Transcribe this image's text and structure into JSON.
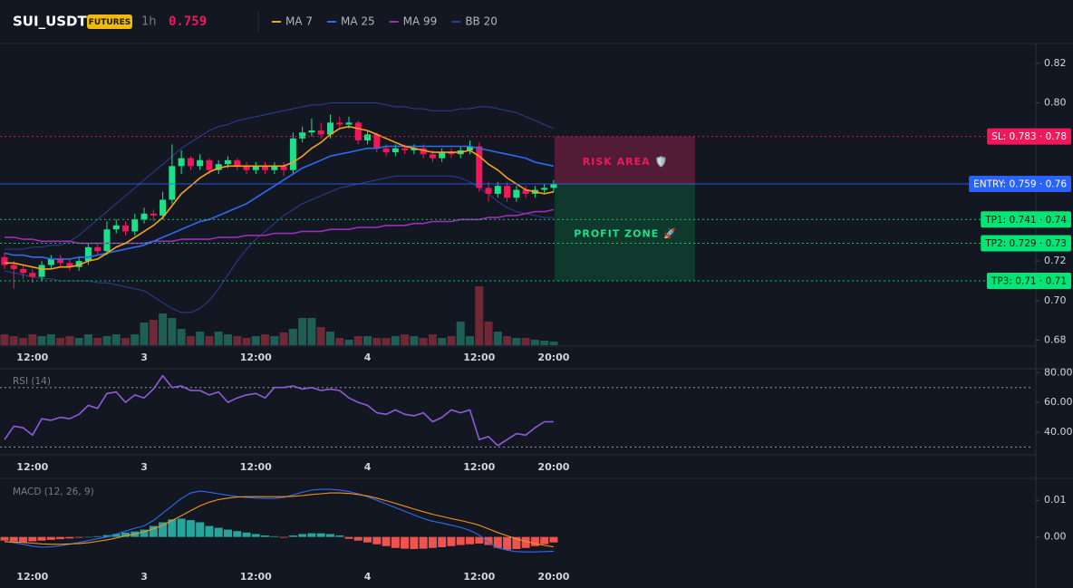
{
  "header": {
    "symbol": "SUI_USDT",
    "badge": "FUTURES",
    "interval": "1h",
    "price": 0.759
  },
  "chart_data": [
    {
      "type": "candlestick",
      "categories": [
        null,
        null,
        null,
        "12:00",
        null,
        null,
        null,
        null,
        null,
        null,
        null,
        null,
        null,
        null,
        null,
        "3",
        null,
        null,
        null,
        null,
        null,
        null,
        null,
        null,
        null,
        null,
        null,
        "12:00",
        null,
        null,
        null,
        null,
        null,
        null,
        null,
        null,
        null,
        null,
        null,
        "4",
        null,
        null,
        null,
        null,
        null,
        null,
        null,
        null,
        null,
        null,
        null,
        "12:00",
        null,
        null,
        null,
        null,
        null,
        null,
        null,
        "20:00"
      ],
      "open": [
        0.722,
        0.718,
        0.716,
        0.714,
        0.712,
        0.718,
        0.721,
        0.719,
        0.717,
        0.72,
        0.727,
        0.725,
        0.736,
        0.738,
        0.735,
        0.741,
        0.744,
        0.743,
        0.751,
        0.768,
        0.772,
        0.768,
        0.771,
        0.766,
        0.769,
        0.771,
        0.768,
        0.766,
        0.768,
        0.766,
        0.768,
        0.766,
        0.782,
        0.785,
        0.786,
        0.784,
        0.79,
        0.789,
        0.79,
        0.781,
        0.784,
        0.777,
        0.775,
        0.777,
        0.776,
        0.777,
        0.774,
        0.772,
        0.775,
        0.774,
        0.776,
        0.778,
        0.757,
        0.754,
        0.758,
        0.752,
        0.756,
        0.754,
        0.756,
        0.757
      ],
      "high": [
        0.724,
        0.72,
        0.718,
        0.716,
        0.72,
        0.723,
        0.723,
        0.721,
        0.722,
        0.729,
        0.729,
        0.74,
        0.741,
        0.74,
        0.744,
        0.747,
        0.746,
        0.755,
        0.779,
        0.776,
        0.773,
        0.774,
        0.772,
        0.771,
        0.773,
        0.772,
        0.77,
        0.77,
        0.77,
        0.77,
        0.77,
        0.785,
        0.788,
        0.792,
        0.79,
        0.794,
        0.793,
        0.793,
        0.791,
        0.786,
        0.785,
        0.779,
        0.779,
        0.779,
        0.779,
        0.779,
        0.776,
        0.777,
        0.777,
        0.778,
        0.781,
        0.78,
        0.76,
        0.76,
        0.76,
        0.758,
        0.758,
        0.758,
        0.759,
        0.761
      ],
      "low": [
        0.716,
        0.706,
        0.711,
        0.709,
        0.71,
        0.716,
        0.717,
        0.715,
        0.715,
        0.718,
        0.723,
        0.723,
        0.734,
        0.733,
        0.733,
        0.739,
        0.74,
        0.741,
        0.749,
        0.764,
        0.766,
        0.766,
        0.764,
        0.764,
        0.767,
        0.766,
        0.764,
        0.764,
        0.764,
        0.764,
        0.763,
        0.764,
        0.78,
        0.783,
        0.782,
        0.782,
        0.787,
        0.787,
        0.779,
        0.779,
        0.775,
        0.773,
        0.773,
        0.774,
        0.774,
        0.772,
        0.77,
        0.77,
        0.772,
        0.772,
        0.774,
        0.755,
        0.75,
        0.752,
        0.75,
        0.75,
        0.752,
        0.752,
        0.754,
        0.755
      ],
      "close": [
        0.718,
        0.716,
        0.714,
        0.712,
        0.718,
        0.721,
        0.719,
        0.717,
        0.72,
        0.727,
        0.725,
        0.736,
        0.738,
        0.735,
        0.741,
        0.744,
        0.743,
        0.751,
        0.768,
        0.772,
        0.768,
        0.771,
        0.766,
        0.769,
        0.771,
        0.768,
        0.766,
        0.768,
        0.766,
        0.768,
        0.766,
        0.782,
        0.785,
        0.786,
        0.784,
        0.79,
        0.789,
        0.79,
        0.781,
        0.784,
        0.777,
        0.775,
        0.777,
        0.776,
        0.777,
        0.774,
        0.772,
        0.775,
        0.774,
        0.776,
        0.778,
        0.757,
        0.754,
        0.758,
        0.752,
        0.756,
        0.754,
        0.756,
        0.757,
        0.759
      ],
      "volume": [
        12,
        10,
        8,
        12,
        10,
        12,
        8,
        10,
        8,
        12,
        8,
        10,
        12,
        8,
        12,
        25,
        28,
        35,
        30,
        18,
        10,
        15,
        10,
        15,
        12,
        10,
        8,
        10,
        12,
        10,
        14,
        18,
        30,
        30,
        20,
        15,
        8,
        6,
        10,
        10,
        8,
        8,
        10,
        12,
        10,
        8,
        12,
        8,
        10,
        26,
        10,
        65,
        26,
        15,
        10,
        8,
        8,
        6,
        5,
        4
      ],
      "up_color": "#1fe08a",
      "down_color": "#f0185a",
      "volume_up_color": "#1d5e55",
      "volume_down_color": "#6e2836",
      "overlays": [
        {
          "name": "MA 7",
          "color": "#f7a21b",
          "values": [
            0.719,
            0.719,
            0.718,
            0.717,
            0.716,
            0.716,
            0.717,
            0.717,
            0.718,
            0.72,
            0.721,
            0.724,
            0.727,
            0.729,
            0.732,
            0.735,
            0.738,
            0.742,
            0.748,
            0.754,
            0.758,
            0.762,
            0.765,
            0.767,
            0.768,
            0.768,
            0.768,
            0.768,
            0.768,
            0.768,
            0.768,
            0.77,
            0.773,
            0.777,
            0.78,
            0.784,
            0.787,
            0.788,
            0.787,
            0.786,
            0.784,
            0.782,
            0.78,
            0.778,
            0.777,
            0.776,
            0.775,
            0.775,
            0.775,
            0.775,
            0.776,
            0.773,
            0.769,
            0.766,
            0.762,
            0.759,
            0.756,
            0.755,
            0.754,
            0.755
          ]
        },
        {
          "name": "MA 25",
          "color": "#2f6bf0",
          "values": [
            0.724,
            0.723,
            0.723,
            0.722,
            0.722,
            0.721,
            0.721,
            0.721,
            0.722,
            0.722,
            0.723,
            0.724,
            0.725,
            0.726,
            0.727,
            0.728,
            0.73,
            0.732,
            0.734,
            0.736,
            0.738,
            0.74,
            0.741,
            0.743,
            0.745,
            0.747,
            0.749,
            0.752,
            0.755,
            0.758,
            0.761,
            0.764,
            0.767,
            0.769,
            0.771,
            0.773,
            0.774,
            0.775,
            0.776,
            0.777,
            0.777,
            0.778,
            0.778,
            0.778,
            0.778,
            0.778,
            0.778,
            0.778,
            0.778,
            0.778,
            0.778,
            0.777,
            0.776,
            0.775,
            0.774,
            0.773,
            0.772,
            0.77,
            0.769,
            0.768
          ]
        },
        {
          "name": "MA 99",
          "color": "#9c2fb8",
          "values": [
            0.732,
            0.732,
            0.731,
            0.731,
            0.73,
            0.73,
            0.73,
            0.73,
            0.729,
            0.729,
            0.729,
            0.729,
            0.729,
            0.729,
            0.729,
            0.729,
            0.73,
            0.73,
            0.73,
            0.731,
            0.731,
            0.731,
            0.731,
            0.732,
            0.732,
            0.732,
            0.733,
            0.733,
            0.733,
            0.734,
            0.734,
            0.734,
            0.735,
            0.735,
            0.735,
            0.736,
            0.736,
            0.736,
            0.737,
            0.737,
            0.737,
            0.738,
            0.738,
            0.738,
            0.739,
            0.739,
            0.74,
            0.74,
            0.74,
            0.741,
            0.741,
            0.741,
            0.742,
            0.742,
            0.743,
            0.743,
            0.744,
            0.745,
            0.745,
            0.746
          ]
        },
        {
          "name": "BB 20",
          "color": "#2a3f8f",
          "upper": [
            0.726,
            0.726,
            0.726,
            0.727,
            0.727,
            0.728,
            0.728,
            0.73,
            0.733,
            0.737,
            0.741,
            0.745,
            0.749,
            0.753,
            0.757,
            0.761,
            0.765,
            0.769,
            0.773,
            0.777,
            0.78,
            0.783,
            0.786,
            0.788,
            0.789,
            0.791,
            0.792,
            0.793,
            0.794,
            0.795,
            0.796,
            0.797,
            0.798,
            0.799,
            0.799,
            0.8,
            0.8,
            0.8,
            0.8,
            0.8,
            0.8,
            0.799,
            0.798,
            0.798,
            0.797,
            0.797,
            0.796,
            0.796,
            0.796,
            0.797,
            0.797,
            0.798,
            0.798,
            0.797,
            0.796,
            0.795,
            0.793,
            0.791,
            0.789,
            0.787
          ],
          "lower": [
            0.715,
            0.714,
            0.713,
            0.712,
            0.711,
            0.711,
            0.71,
            0.71,
            0.71,
            0.71,
            0.709,
            0.709,
            0.708,
            0.707,
            0.706,
            0.705,
            0.702,
            0.699,
            0.696,
            0.694,
            0.694,
            0.696,
            0.7,
            0.706,
            0.713,
            0.72,
            0.726,
            0.731,
            0.735,
            0.739,
            0.743,
            0.746,
            0.749,
            0.751,
            0.753,
            0.755,
            0.757,
            0.758,
            0.759,
            0.76,
            0.761,
            0.762,
            0.763,
            0.763,
            0.763,
            0.763,
            0.763,
            0.763,
            0.763,
            0.762,
            0.76,
            0.757,
            0.754,
            0.75,
            0.747,
            0.745,
            0.744,
            0.743,
            0.742,
            0.742
          ]
        }
      ],
      "levels": [
        {
          "label": "SL: 0.783 · 0.78",
          "value": 0.783,
          "color": "#f0185a",
          "text_color": "#ffffff",
          "style": "dotted"
        },
        {
          "label": "ENTRY: 0.759 · 0.76",
          "value": 0.759,
          "color": "#2962ff",
          "text_color": "#ffffff",
          "style": "solid"
        },
        {
          "label": "TP1: 0.741 · 0.74",
          "value": 0.741,
          "color": "#00e676",
          "text_color": "#0b1d12",
          "style": "dotted"
        },
        {
          "label": "TP2: 0.729 · 0.73",
          "value": 0.729,
          "color": "#00e676",
          "text_color": "#0b1d12",
          "style": "dotted"
        },
        {
          "label": "TP3: 0.71 · 0.71",
          "value": 0.71,
          "color": "#00e676",
          "text_color": "#0b1d12",
          "style": "dotted"
        }
      ],
      "zones": [
        {
          "label": "RISK AREA 🛡️",
          "color": "#5a1d3a",
          "text_color": "#f0185a"
        },
        {
          "label": "PROFIT ZONE 🚀",
          "color": "#0f3d2e",
          "text_color": "#1fe08a"
        }
      ],
      "ylim": [
        0.677,
        0.83
      ],
      "yticks": [
        0.68,
        {
          "value": 0.7,
          "label": "0.70"
        },
        0.72,
        {
          "value": 0.8,
          "label": "0.80"
        },
        0.82
      ]
    },
    {
      "type": "line",
      "title": "RSI (14)",
      "categories": [
        null,
        null,
        null,
        "12:00",
        null,
        null,
        null,
        null,
        null,
        null,
        null,
        null,
        null,
        null,
        null,
        "3",
        null,
        null,
        null,
        null,
        null,
        null,
        null,
        null,
        null,
        null,
        null,
        "12:00",
        null,
        null,
        null,
        null,
        null,
        null,
        null,
        null,
        null,
        null,
        null,
        "4",
        null,
        null,
        null,
        null,
        null,
        null,
        null,
        null,
        null,
        null,
        null,
        "12:00",
        null,
        null,
        null,
        null,
        null,
        null,
        null,
        "20:00"
      ],
      "values": [
        35,
        44,
        43,
        38,
        49,
        48,
        50,
        49,
        52,
        58,
        56,
        66,
        67,
        60,
        65,
        63,
        69,
        78,
        70,
        71,
        68,
        68,
        65,
        67,
        60,
        63,
        65,
        66,
        63,
        70,
        70,
        71,
        69,
        70,
        68,
        69,
        68,
        63,
        60,
        58,
        53,
        52,
        55,
        52,
        51,
        53,
        47,
        50,
        55,
        53,
        55,
        35,
        37,
        31,
        35,
        39,
        38,
        43,
        47,
        47
      ],
      "color": "#8e5cd9",
      "guide_lines": [
        70,
        30
      ],
      "ylim": [
        26,
        82
      ],
      "yticks": [
        {
          "value": 80,
          "label": "80.00"
        },
        {
          "value": 60,
          "label": "60.00"
        },
        {
          "value": 40,
          "label": "40.00"
        }
      ]
    },
    {
      "type": "macd",
      "title": "MACD (12, 26, 9)",
      "categories": [
        null,
        null,
        null,
        "12:00",
        null,
        null,
        null,
        null,
        null,
        null,
        null,
        null,
        null,
        null,
        null,
        "3",
        null,
        null,
        null,
        null,
        null,
        null,
        null,
        null,
        null,
        null,
        null,
        "12:00",
        null,
        null,
        null,
        null,
        null,
        null,
        null,
        null,
        null,
        null,
        null,
        "4",
        null,
        null,
        null,
        null,
        null,
        null,
        null,
        null,
        null,
        null,
        null,
        "12:00",
        null,
        null,
        null,
        null,
        null,
        null,
        null,
        "20:00"
      ],
      "macd": {
        "color": "#2f6bf0",
        "values": [
          -0.0012,
          -0.0016,
          -0.002,
          -0.0025,
          -0.0028,
          -0.0027,
          -0.0024,
          -0.002,
          -0.0015,
          -0.001,
          -0.0005,
          0,
          0.0008,
          0.0016,
          0.0024,
          0.003,
          0.0045,
          0.0065,
          0.0085,
          0.0105,
          0.012,
          0.0125,
          0.0122,
          0.0118,
          0.0114,
          0.011,
          0.0108,
          0.0106,
          0.0105,
          0.0105,
          0.0108,
          0.0115,
          0.0122,
          0.0128,
          0.013,
          0.013,
          0.0128,
          0.0124,
          0.0118,
          0.011,
          0.01,
          0.009,
          0.008,
          0.007,
          0.006,
          0.005,
          0.0043,
          0.0038,
          0.0032,
          0.0026,
          0.0018,
          0.0005,
          -0.0015,
          -0.003,
          -0.0036,
          -0.004,
          -0.0041,
          -0.0041,
          -0.004,
          -0.0039
        ]
      },
      "signal": {
        "color": "#f7931a",
        "values": [
          -0.0013,
          -0.0014,
          -0.0015,
          -0.0017,
          -0.0019,
          -0.002,
          -0.002,
          -0.0019,
          -0.0018,
          -0.0016,
          -0.0012,
          -0.0008,
          -0.0003,
          0.0003,
          0.0008,
          0.0014,
          0.0022,
          0.0032,
          0.0045,
          0.0058,
          0.0072,
          0.0085,
          0.0095,
          0.0102,
          0.0106,
          0.0109,
          0.011,
          0.011,
          0.011,
          0.011,
          0.011,
          0.0111,
          0.0113,
          0.0116,
          0.0118,
          0.012,
          0.012,
          0.0119,
          0.0116,
          0.0112,
          0.0106,
          0.0099,
          0.0092,
          0.0084,
          0.0076,
          0.0069,
          0.0062,
          0.0056,
          0.005,
          0.0045,
          0.0039,
          0.0032,
          0.0022,
          0.0012,
          0.0003,
          -0.0005,
          -0.0012,
          -0.0018,
          -0.0023,
          -0.0027
        ]
      },
      "histogram": {
        "up_color": "#26a69a",
        "down_color": "#ef5350",
        "values": [
          -0.001,
          -0.0012,
          -0.0014,
          -0.0012,
          -0.001,
          -0.0008,
          -0.0006,
          -0.0004,
          -0.0002,
          0,
          0.0002,
          0.0005,
          0.0008,
          0.0012,
          0.0015,
          0.002,
          0.003,
          0.004,
          0.0048,
          0.005,
          0.0046,
          0.004,
          0.003,
          0.0025,
          0.002,
          0.0016,
          0.0012,
          0.0008,
          0.0004,
          0.0002,
          -0.0002,
          0.0004,
          0.0008,
          0.001,
          0.001,
          0.0008,
          0.0004,
          -0.0005,
          -0.001,
          -0.0015,
          -0.002,
          -0.0025,
          -0.003,
          -0.0032,
          -0.0033,
          -0.0032,
          -0.003,
          -0.0028,
          -0.0025,
          -0.0022,
          -0.002,
          -0.0018,
          -0.0022,
          -0.003,
          -0.0035,
          -0.0033,
          -0.003,
          -0.0025,
          -0.002,
          -0.0015
        ]
      },
      "ylim": [
        -0.008,
        0.0155
      ],
      "yticks": [
        0.01,
        {
          "value": 0,
          "label": "0.00"
        }
      ]
    }
  ]
}
